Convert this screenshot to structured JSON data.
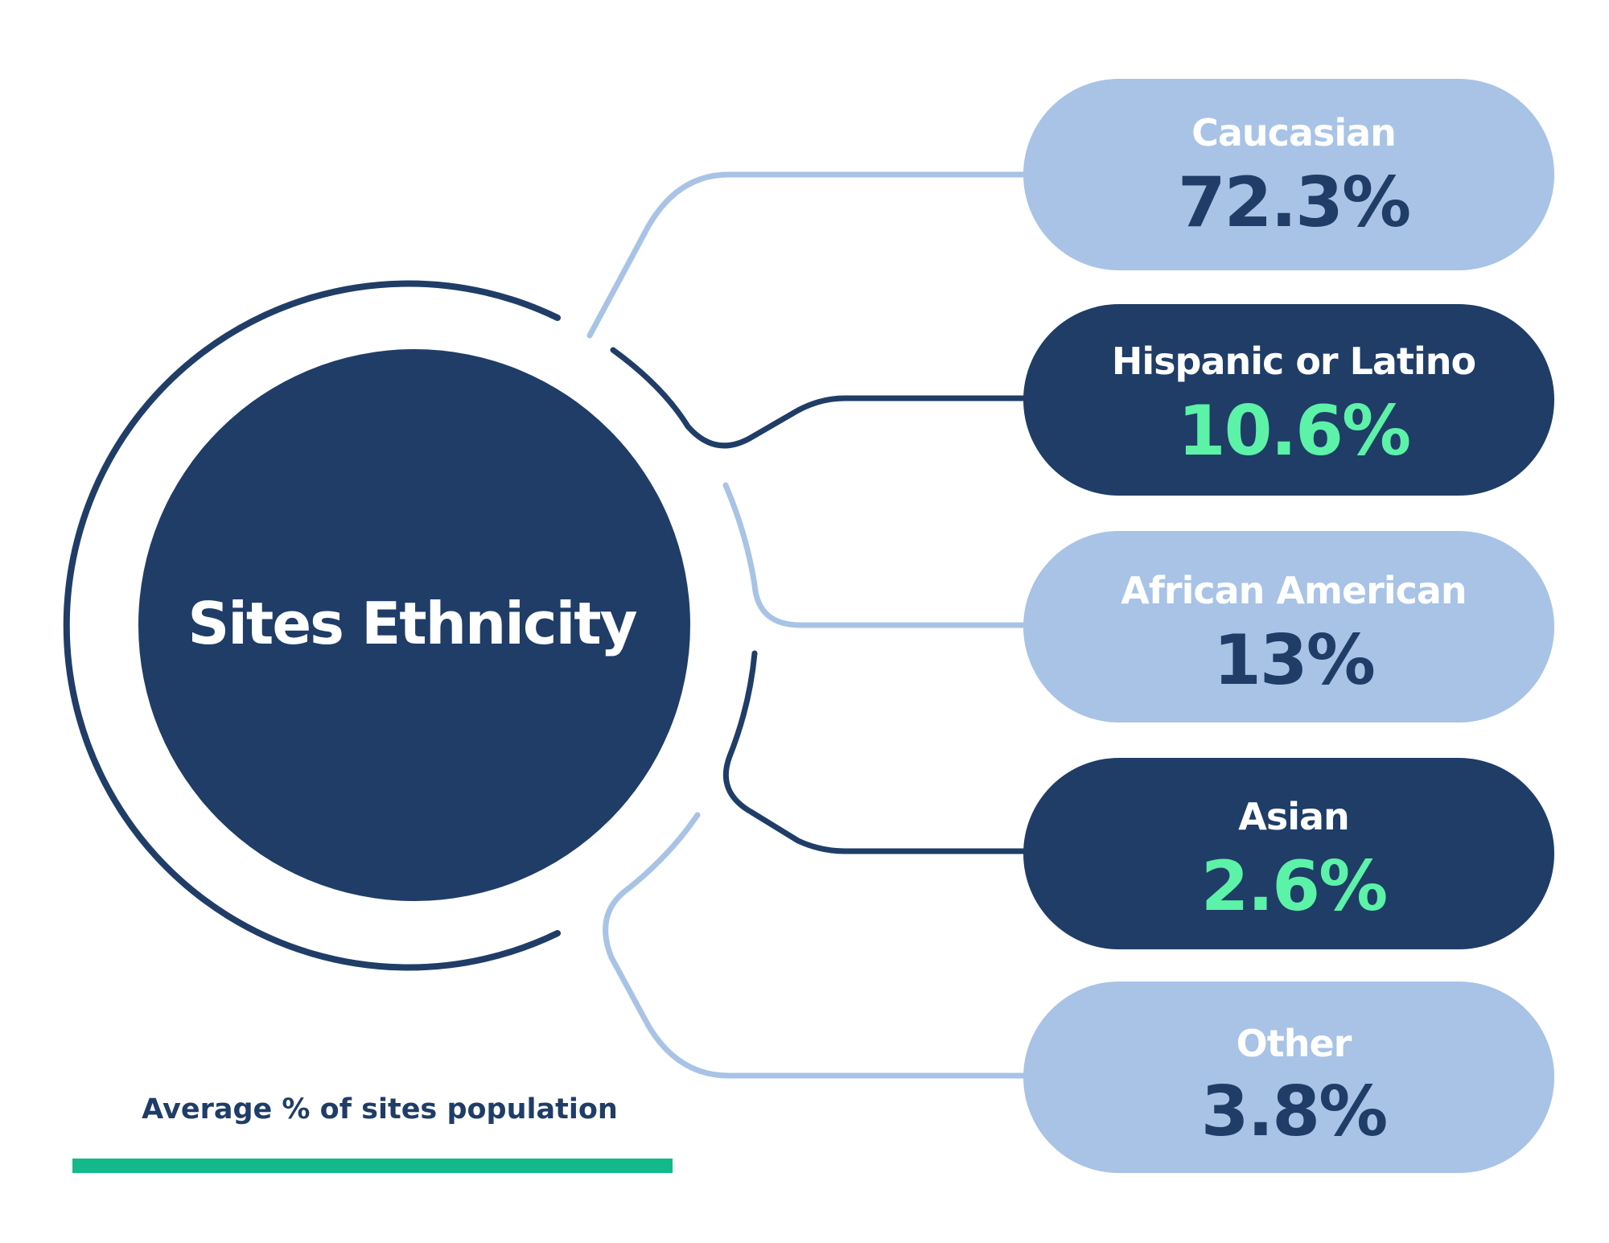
{
  "hub": {
    "title": "Sites Ethnicity"
  },
  "segments": [
    {
      "label": "Caucasian",
      "value": "72.3%",
      "theme": "light"
    },
    {
      "label": "Hispanic or Latino",
      "value": "10.6%",
      "theme": "dark"
    },
    {
      "label": "African American",
      "value": "13%",
      "theme": "light"
    },
    {
      "label": "Asian",
      "value": "2.6%",
      "theme": "dark"
    },
    {
      "label": "Other",
      "value": "3.8%",
      "theme": "light"
    }
  ],
  "footer": {
    "caption": "Average % of sites population"
  },
  "colors": {
    "navy": "#1f3d67",
    "light_blue": "#a8c3e6",
    "mint": "#5cf2a8",
    "white": "#ffffff",
    "green_bar": "#13b98b"
  }
}
